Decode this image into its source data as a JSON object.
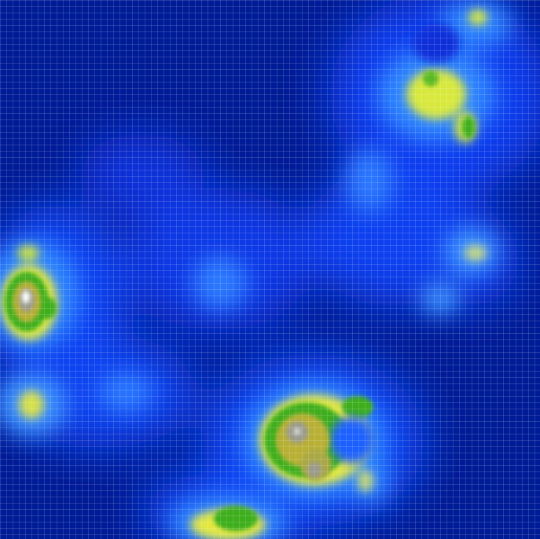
{
  "map": {
    "kind": "terrain-heightmap",
    "grid_visible": true,
    "palette": {
      "deep_water": "#000c7a",
      "water": "#0a2be0",
      "shallow_water": "#1e64ff",
      "coast": "#4aa8ff",
      "sand": "#e4e840",
      "lowland": "#3fb018",
      "highland": "#b8b030",
      "mountain": "#8a8a8a",
      "peak": "#ffffff"
    }
  }
}
